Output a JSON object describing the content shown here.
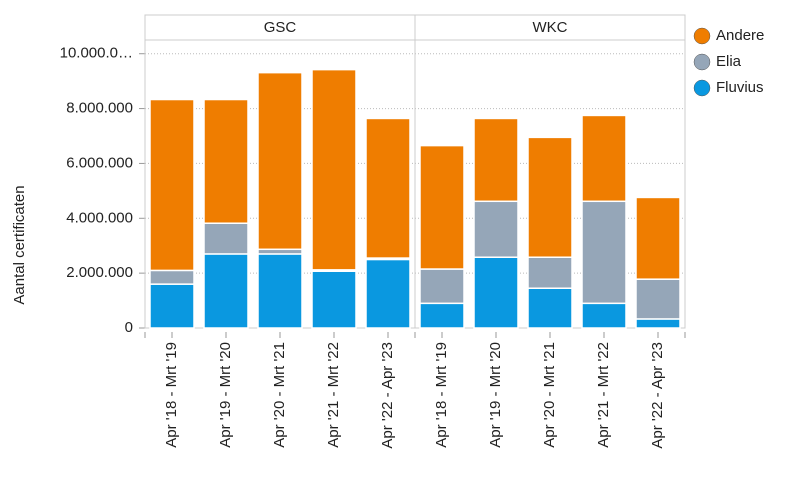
{
  "chart_data": {
    "type": "bar",
    "stacked": true,
    "ylabel": "Aantal certificaten",
    "ylim": [
      0,
      10500000
    ],
    "yticks": [
      0,
      {
        "value": 2000000,
        "label": "2.000.000"
      },
      {
        "value": 4000000,
        "label": "4.000.000"
      },
      {
        "value": 6000000,
        "label": "6.000.000"
      },
      {
        "value": 8000000,
        "label": "8.000.000"
      },
      {
        "value": 10000000,
        "label": "10.000.0…"
      }
    ],
    "grid": true,
    "legend": "right",
    "series": [
      {
        "name": "Fluvius",
        "color": "#0a98e0"
      },
      {
        "name": "Elia",
        "color": "#95a6b8"
      },
      {
        "name": "Andere",
        "color": "#ef7d00"
      }
    ],
    "facets": [
      {
        "title": "GSC",
        "categories": [
          "Apr '18 - Mrt '19",
          "Apr '19 - Mrt '20",
          "Apr '20 - Mrt '21",
          "Apr '21 - Mrt '22",
          "Apr '22 - Apr '23"
        ],
        "series": [
          {
            "values": [
              1600000,
              2700000,
              2700000,
              2070000,
              2500000
            ]
          },
          {
            "values": [
              500000,
              1120000,
              170000,
              50000,
              50000
            ]
          },
          {
            "values": [
              6230000,
              4510000,
              6440000,
              7300000,
              5090000
            ]
          }
        ]
      },
      {
        "title": "WKC",
        "categories": [
          "Apr '18 - Mrt '19",
          "Apr '19 - Mrt '20",
          "Apr '20 - Mrt '21",
          "Apr '21 - Mrt '22",
          "Apr '22 - Apr '23"
        ],
        "series": [
          {
            "values": [
              900000,
              2580000,
              1450000,
              900000,
              330000
            ]
          },
          {
            "values": [
              1250000,
              2040000,
              1130000,
              3720000,
              1450000
            ]
          },
          {
            "values": [
              4500000,
              3020000,
              4370000,
              3130000,
              2980000
            ]
          }
        ]
      }
    ]
  }
}
